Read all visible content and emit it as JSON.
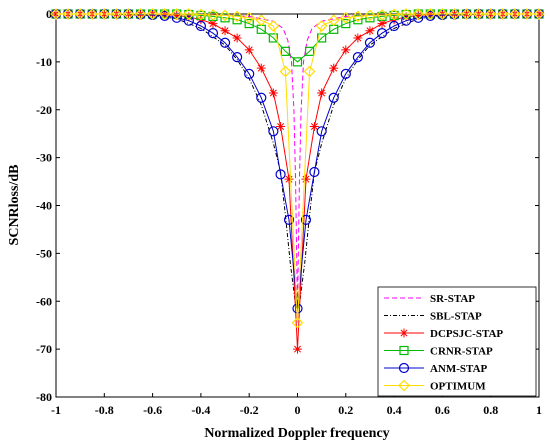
{
  "chart_data": {
    "type": "line",
    "title": "",
    "xlabel": "Normalized Doppler frequency",
    "ylabel": "SCNRloss/dB",
    "xlim": [
      -1,
      1
    ],
    "ylim": [
      -80,
      0
    ],
    "x_ticks": [
      "-1",
      "-0.8",
      "-0.6",
      "-0.4",
      "-0.2",
      "0",
      "0.2",
      "0.4",
      "0.6",
      "0.8",
      "1"
    ],
    "y_ticks": [
      "0",
      "-10",
      "-20",
      "-30",
      "-40",
      "-50",
      "-60",
      "-70",
      "-80"
    ],
    "grid": false,
    "legend_position": "bottom-right",
    "series": [
      {
        "name": "SR-STAP",
        "color": "#ff00ff",
        "line": "dashed",
        "marker": "none",
        "points": [
          [
            -1,
            0
          ],
          [
            -0.5,
            0
          ],
          [
            -0.3,
            -0.2
          ],
          [
            -0.2,
            -0.5
          ],
          [
            -0.1,
            -1.5
          ],
          [
            -0.06,
            -3
          ],
          [
            -0.04,
            -5.5
          ],
          [
            -0.025,
            -10
          ],
          [
            -0.015,
            -20
          ],
          [
            -0.008,
            -35
          ],
          [
            0,
            -62
          ],
          [
            0.008,
            -35
          ],
          [
            0.015,
            -20
          ],
          [
            0.025,
            -10
          ],
          [
            0.04,
            -5.5
          ],
          [
            0.06,
            -3
          ],
          [
            0.1,
            -1.5
          ],
          [
            0.2,
            -0.5
          ],
          [
            0.3,
            -0.2
          ],
          [
            0.5,
            0
          ],
          [
            1,
            0
          ]
        ]
      },
      {
        "name": "SBL-STAP",
        "color": "#000000",
        "line": "dashdot",
        "marker": "none",
        "points": [
          [
            -1,
            0
          ],
          [
            -0.8,
            0
          ],
          [
            -0.6,
            -0.3
          ],
          [
            -0.5,
            -1
          ],
          [
            -0.4,
            -3
          ],
          [
            -0.3,
            -6.5
          ],
          [
            -0.25,
            -9.5
          ],
          [
            -0.2,
            -13.5
          ],
          [
            -0.15,
            -19
          ],
          [
            -0.1,
            -27
          ],
          [
            -0.07,
            -33
          ],
          [
            -0.05,
            -42
          ],
          [
            -0.03,
            -52
          ],
          [
            -0.01,
            -60
          ],
          [
            0,
            -62
          ],
          [
            0.01,
            -60
          ],
          [
            0.03,
            -52
          ],
          [
            0.05,
            -42
          ],
          [
            0.07,
            -33
          ],
          [
            0.1,
            -27
          ],
          [
            0.15,
            -19
          ],
          [
            0.2,
            -13.5
          ],
          [
            0.25,
            -9.5
          ],
          [
            0.3,
            -6.5
          ],
          [
            0.4,
            -3
          ],
          [
            0.5,
            -1
          ],
          [
            0.6,
            -0.3
          ],
          [
            0.8,
            0
          ],
          [
            1,
            0
          ]
        ]
      },
      {
        "name": "DCPSJC-STAP",
        "color": "#ff0000",
        "line": "solid",
        "marker": "star",
        "points": [
          [
            -1,
            0
          ],
          [
            -0.95,
            0
          ],
          [
            -0.9,
            0
          ],
          [
            -0.85,
            0
          ],
          [
            -0.8,
            0
          ],
          [
            -0.75,
            0
          ],
          [
            -0.7,
            0
          ],
          [
            -0.65,
            0
          ],
          [
            -0.6,
            0
          ],
          [
            -0.55,
            -0.1
          ],
          [
            -0.5,
            -0.3
          ],
          [
            -0.45,
            -0.6
          ],
          [
            -0.4,
            -1.2
          ],
          [
            -0.35,
            -2
          ],
          [
            -0.3,
            -3.5
          ],
          [
            -0.25,
            -5
          ],
          [
            -0.2,
            -7.5
          ],
          [
            -0.15,
            -11.3
          ],
          [
            -0.1,
            -16.5
          ],
          [
            -0.07,
            -23.5
          ],
          [
            -0.035,
            -34.5
          ],
          [
            0,
            -70
          ],
          [
            0.035,
            -34.5
          ],
          [
            0.07,
            -23.5
          ],
          [
            0.1,
            -16.5
          ],
          [
            0.15,
            -11.3
          ],
          [
            0.2,
            -7.5
          ],
          [
            0.25,
            -5
          ],
          [
            0.3,
            -3.5
          ],
          [
            0.35,
            -2
          ],
          [
            0.4,
            -1.2
          ],
          [
            0.45,
            -0.6
          ],
          [
            0.5,
            -0.3
          ],
          [
            0.55,
            -0.1
          ],
          [
            0.6,
            0
          ],
          [
            0.65,
            0
          ],
          [
            0.7,
            0
          ],
          [
            0.75,
            0
          ],
          [
            0.8,
            0
          ],
          [
            0.85,
            0
          ],
          [
            0.9,
            0
          ],
          [
            0.95,
            0
          ],
          [
            1,
            0
          ]
        ]
      },
      {
        "name": "CRNR-STAP",
        "color": "#00bb00",
        "line": "solid",
        "marker": "square",
        "points": [
          [
            -1,
            0
          ],
          [
            -0.95,
            0
          ],
          [
            -0.9,
            0
          ],
          [
            -0.85,
            0
          ],
          [
            -0.8,
            0
          ],
          [
            -0.75,
            0
          ],
          [
            -0.7,
            0
          ],
          [
            -0.65,
            0
          ],
          [
            -0.6,
            0
          ],
          [
            -0.55,
            0
          ],
          [
            -0.5,
            0
          ],
          [
            -0.45,
            -0.1
          ],
          [
            -0.4,
            -0.3
          ],
          [
            -0.35,
            -0.5
          ],
          [
            -0.3,
            -0.8
          ],
          [
            -0.25,
            -1.2
          ],
          [
            -0.2,
            -2
          ],
          [
            -0.15,
            -3.2
          ],
          [
            -0.1,
            -5
          ],
          [
            -0.05,
            -7.8
          ],
          [
            0,
            -10
          ],
          [
            0.05,
            -7.8
          ],
          [
            0.1,
            -5
          ],
          [
            0.15,
            -3.2
          ],
          [
            0.2,
            -2
          ],
          [
            0.25,
            -1.2
          ],
          [
            0.3,
            -0.8
          ],
          [
            0.35,
            -0.5
          ],
          [
            0.4,
            -0.3
          ],
          [
            0.45,
            -0.1
          ],
          [
            0.5,
            0
          ],
          [
            0.55,
            0
          ],
          [
            0.6,
            0
          ],
          [
            0.65,
            0
          ],
          [
            0.7,
            0
          ],
          [
            0.75,
            0
          ],
          [
            0.8,
            0
          ],
          [
            0.85,
            0
          ],
          [
            0.9,
            0
          ],
          [
            0.95,
            0
          ],
          [
            1,
            0
          ]
        ]
      },
      {
        "name": "ANM-STAP",
        "color": "#0000cc",
        "line": "solid",
        "marker": "circle",
        "points": [
          [
            -1,
            0
          ],
          [
            -0.95,
            0
          ],
          [
            -0.9,
            0
          ],
          [
            -0.85,
            0
          ],
          [
            -0.8,
            0
          ],
          [
            -0.75,
            0
          ],
          [
            -0.7,
            0
          ],
          [
            -0.65,
            -0.1
          ],
          [
            -0.6,
            -0.2
          ],
          [
            -0.55,
            -0.4
          ],
          [
            -0.5,
            -0.8
          ],
          [
            -0.45,
            -1.4
          ],
          [
            -0.4,
            -2.5
          ],
          [
            -0.35,
            -4
          ],
          [
            -0.3,
            -6
          ],
          [
            -0.25,
            -9
          ],
          [
            -0.2,
            -12.5
          ],
          [
            -0.15,
            -17.5
          ],
          [
            -0.1,
            -24.5
          ],
          [
            -0.07,
            -33.5
          ],
          [
            -0.035,
            -43
          ],
          [
            0,
            -61.5
          ],
          [
            0.035,
            -43
          ],
          [
            0.07,
            -33
          ],
          [
            0.1,
            -24.5
          ],
          [
            0.15,
            -17.5
          ],
          [
            0.2,
            -12.5
          ],
          [
            0.25,
            -9
          ],
          [
            0.3,
            -6
          ],
          [
            0.35,
            -4
          ],
          [
            0.4,
            -2.5
          ],
          [
            0.45,
            -1.4
          ],
          [
            0.5,
            -0.8
          ],
          [
            0.55,
            -0.4
          ],
          [
            0.6,
            -0.2
          ],
          [
            0.65,
            -0.1
          ],
          [
            0.7,
            0
          ],
          [
            0.75,
            0
          ],
          [
            0.8,
            0
          ],
          [
            0.85,
            0
          ],
          [
            0.9,
            0
          ],
          [
            0.95,
            0
          ],
          [
            1,
            0
          ]
        ]
      },
      {
        "name": "OPTIMUM",
        "color": "#ffdd00",
        "line": "solid",
        "marker": "diamond",
        "points": [
          [
            -1,
            0
          ],
          [
            -0.95,
            0
          ],
          [
            -0.9,
            0
          ],
          [
            -0.85,
            0
          ],
          [
            -0.8,
            0
          ],
          [
            -0.75,
            0
          ],
          [
            -0.7,
            0
          ],
          [
            -0.65,
            0
          ],
          [
            -0.6,
            0
          ],
          [
            -0.55,
            0
          ],
          [
            -0.5,
            0
          ],
          [
            -0.45,
            0
          ],
          [
            -0.4,
            -0.1
          ],
          [
            -0.35,
            -0.2
          ],
          [
            -0.3,
            -0.3
          ],
          [
            -0.25,
            -0.5
          ],
          [
            -0.2,
            -0.8
          ],
          [
            -0.15,
            -1.3
          ],
          [
            -0.1,
            -2.5
          ],
          [
            -0.05,
            -12
          ],
          [
            0,
            -64.5
          ],
          [
            0.05,
            -12
          ],
          [
            0.1,
            -2.5
          ],
          [
            0.15,
            -1.3
          ],
          [
            0.2,
            -0.8
          ],
          [
            0.25,
            -0.5
          ],
          [
            0.3,
            -0.3
          ],
          [
            0.35,
            -0.2
          ],
          [
            0.4,
            -0.1
          ],
          [
            0.45,
            0
          ],
          [
            0.5,
            0
          ],
          [
            0.55,
            0
          ],
          [
            0.6,
            0
          ],
          [
            0.65,
            0
          ],
          [
            0.7,
            0
          ],
          [
            0.75,
            0
          ],
          [
            0.8,
            0
          ],
          [
            0.85,
            0
          ],
          [
            0.9,
            0
          ],
          [
            0.95,
            0
          ],
          [
            1,
            0
          ]
        ]
      }
    ]
  }
}
